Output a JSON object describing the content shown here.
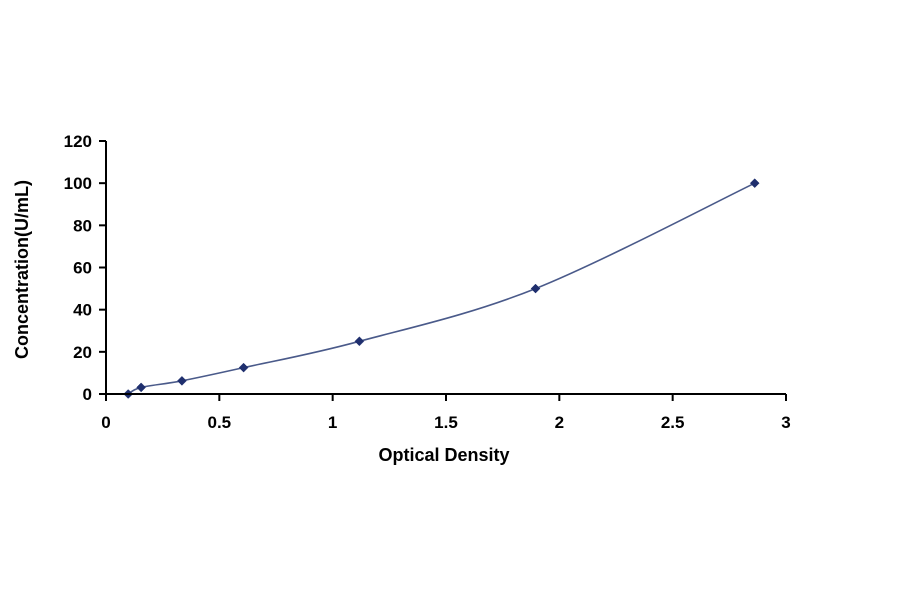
{
  "chart_data": {
    "type": "scatter",
    "title": "",
    "xlabel": "Optical Density",
    "ylabel": "Concentration(U/mL)",
    "xlim": [
      0,
      3
    ],
    "ylim": [
      0,
      120
    ],
    "xticks": [
      "0",
      "0.5",
      "1",
      "1.5",
      "2",
      "2.5",
      "3"
    ],
    "yticks": [
      "0",
      "20",
      "40",
      "60",
      "80",
      "100",
      "120"
    ],
    "grid": false,
    "legend": "none",
    "trendline": "smooth curve",
    "colors": {
      "points": "#1f2f6e",
      "line": "#4a5a8a",
      "axis": "#000000"
    },
    "series": [
      {
        "x": [
          0.098,
          0.155,
          0.335,
          0.607,
          1.118,
          1.895,
          2.862
        ],
        "y": [
          0,
          3.125,
          6.25,
          12.5,
          25,
          50,
          100
        ]
      }
    ]
  }
}
